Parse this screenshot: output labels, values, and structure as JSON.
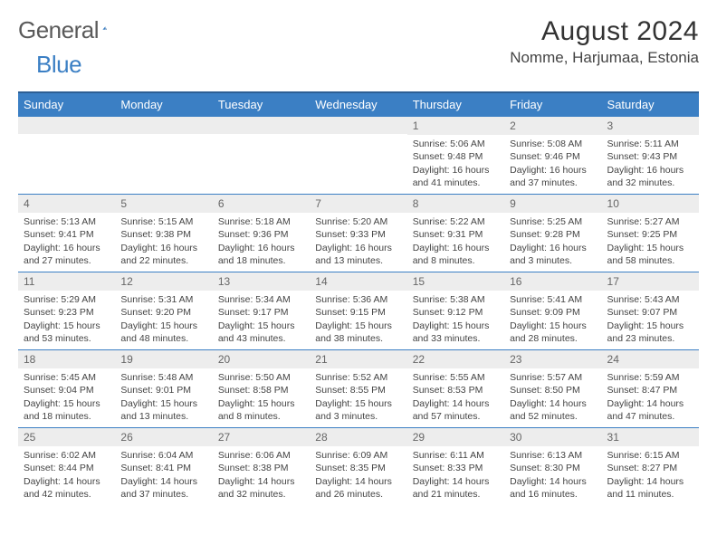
{
  "logo": {
    "part1": "General",
    "part2": "Blue"
  },
  "title": "August 2024",
  "location": "Nomme, Harjumaa, Estonia",
  "calendar": {
    "type": "table",
    "columns": [
      "Sunday",
      "Monday",
      "Tuesday",
      "Wednesday",
      "Thursday",
      "Friday",
      "Saturday"
    ],
    "header_bg": "#3b7fc4",
    "header_text_color": "#ffffff",
    "row_border_color": "#3b7fc4",
    "daynum_bg": "#ededed",
    "body_text_color": "#444444",
    "font_family": "Arial",
    "title_fontsize": 30,
    "header_fontsize": 13,
    "cell_fontsize": 10.5,
    "weeks": [
      [
        null,
        null,
        null,
        null,
        {
          "n": "1",
          "sr": "5:06 AM",
          "ss": "9:48 PM",
          "dl": "16 hours and 41 minutes."
        },
        {
          "n": "2",
          "sr": "5:08 AM",
          "ss": "9:46 PM",
          "dl": "16 hours and 37 minutes."
        },
        {
          "n": "3",
          "sr": "5:11 AM",
          "ss": "9:43 PM",
          "dl": "16 hours and 32 minutes."
        }
      ],
      [
        {
          "n": "4",
          "sr": "5:13 AM",
          "ss": "9:41 PM",
          "dl": "16 hours and 27 minutes."
        },
        {
          "n": "5",
          "sr": "5:15 AM",
          "ss": "9:38 PM",
          "dl": "16 hours and 22 minutes."
        },
        {
          "n": "6",
          "sr": "5:18 AM",
          "ss": "9:36 PM",
          "dl": "16 hours and 18 minutes."
        },
        {
          "n": "7",
          "sr": "5:20 AM",
          "ss": "9:33 PM",
          "dl": "16 hours and 13 minutes."
        },
        {
          "n": "8",
          "sr": "5:22 AM",
          "ss": "9:31 PM",
          "dl": "16 hours and 8 minutes."
        },
        {
          "n": "9",
          "sr": "5:25 AM",
          "ss": "9:28 PM",
          "dl": "16 hours and 3 minutes."
        },
        {
          "n": "10",
          "sr": "5:27 AM",
          "ss": "9:25 PM",
          "dl": "15 hours and 58 minutes."
        }
      ],
      [
        {
          "n": "11",
          "sr": "5:29 AM",
          "ss": "9:23 PM",
          "dl": "15 hours and 53 minutes."
        },
        {
          "n": "12",
          "sr": "5:31 AM",
          "ss": "9:20 PM",
          "dl": "15 hours and 48 minutes."
        },
        {
          "n": "13",
          "sr": "5:34 AM",
          "ss": "9:17 PM",
          "dl": "15 hours and 43 minutes."
        },
        {
          "n": "14",
          "sr": "5:36 AM",
          "ss": "9:15 PM",
          "dl": "15 hours and 38 minutes."
        },
        {
          "n": "15",
          "sr": "5:38 AM",
          "ss": "9:12 PM",
          "dl": "15 hours and 33 minutes."
        },
        {
          "n": "16",
          "sr": "5:41 AM",
          "ss": "9:09 PM",
          "dl": "15 hours and 28 minutes."
        },
        {
          "n": "17",
          "sr": "5:43 AM",
          "ss": "9:07 PM",
          "dl": "15 hours and 23 minutes."
        }
      ],
      [
        {
          "n": "18",
          "sr": "5:45 AM",
          "ss": "9:04 PM",
          "dl": "15 hours and 18 minutes."
        },
        {
          "n": "19",
          "sr": "5:48 AM",
          "ss": "9:01 PM",
          "dl": "15 hours and 13 minutes."
        },
        {
          "n": "20",
          "sr": "5:50 AM",
          "ss": "8:58 PM",
          "dl": "15 hours and 8 minutes."
        },
        {
          "n": "21",
          "sr": "5:52 AM",
          "ss": "8:55 PM",
          "dl": "15 hours and 3 minutes."
        },
        {
          "n": "22",
          "sr": "5:55 AM",
          "ss": "8:53 PM",
          "dl": "14 hours and 57 minutes."
        },
        {
          "n": "23",
          "sr": "5:57 AM",
          "ss": "8:50 PM",
          "dl": "14 hours and 52 minutes."
        },
        {
          "n": "24",
          "sr": "5:59 AM",
          "ss": "8:47 PM",
          "dl": "14 hours and 47 minutes."
        }
      ],
      [
        {
          "n": "25",
          "sr": "6:02 AM",
          "ss": "8:44 PM",
          "dl": "14 hours and 42 minutes."
        },
        {
          "n": "26",
          "sr": "6:04 AM",
          "ss": "8:41 PM",
          "dl": "14 hours and 37 minutes."
        },
        {
          "n": "27",
          "sr": "6:06 AM",
          "ss": "8:38 PM",
          "dl": "14 hours and 32 minutes."
        },
        {
          "n": "28",
          "sr": "6:09 AM",
          "ss": "8:35 PM",
          "dl": "14 hours and 26 minutes."
        },
        {
          "n": "29",
          "sr": "6:11 AM",
          "ss": "8:33 PM",
          "dl": "14 hours and 21 minutes."
        },
        {
          "n": "30",
          "sr": "6:13 AM",
          "ss": "8:30 PM",
          "dl": "14 hours and 16 minutes."
        },
        {
          "n": "31",
          "sr": "6:15 AM",
          "ss": "8:27 PM",
          "dl": "14 hours and 11 minutes."
        }
      ]
    ]
  },
  "labels": {
    "sunrise": "Sunrise:",
    "sunset": "Sunset:",
    "daylight": "Daylight:"
  }
}
